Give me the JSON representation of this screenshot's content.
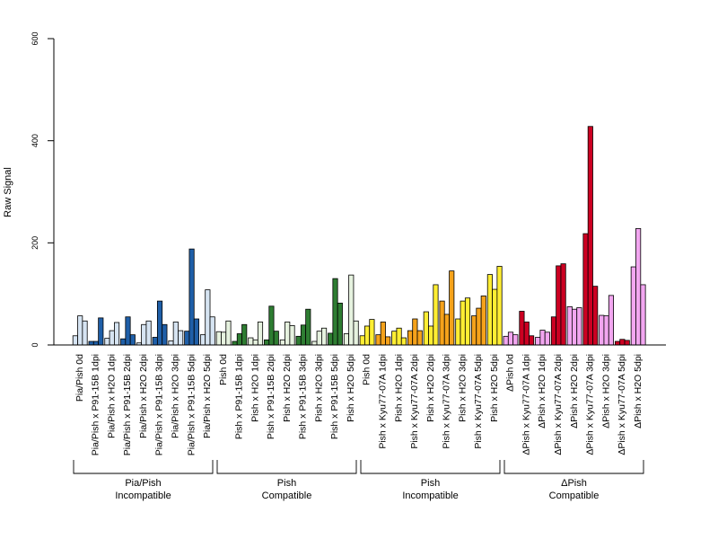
{
  "chart_data": {
    "type": "bar",
    "title": "",
    "xlabel": "",
    "ylabel": "Raw Signal",
    "ylim": [
      0,
      600
    ],
    "yticks": [
      0,
      200,
      400,
      600
    ],
    "grid": false,
    "categories": [
      "Pia/Pish 0d",
      "Pia/Pish x P91-15B 1dpi",
      "Pia/Pish x H2O 1dpi",
      "Pia/Pish x P91-15B 2dpi",
      "Pia/Pish x H2O 2dpi",
      "Pia/Pish x P91-15B 3dpi",
      "Pia/Pish x H2O 3dpi",
      "Pia/Pish x P91-15B 5dpi",
      "Pia/Pish x H2O 5dpi",
      "Pish 0d",
      "Pish x P91-15B 1dpi",
      "Pish x H2O 1dpi",
      "Pish x P91-15B 2dpi",
      "Pish x H2O 2dpi",
      "Pish x P91-15B 3dpi",
      "Pish x H2O 3dpi",
      "Pish x P91-15B 5dpi",
      "Pish x H2O 5dpi",
      "Pish 0d",
      "Pish x Kyu77-07A 1dpi",
      "Pish x H2O 1dpi",
      "Pish x Kyu77-07A 2dpi",
      "Pish x H2O 2dpi",
      "Pish x Kyu77-07A 3dpi",
      "Pish x H2O 3dpi",
      "Pish x Kyu77-07A 5dpi",
      "Pish x H2O 5dpi",
      "ΔPish 0d",
      "ΔPish x Kyu77-07A 1dpi",
      "ΔPish x H2O 1dpi",
      "ΔPish x Kyu77-07A 2dpi",
      "ΔPish x H2O 2dpi",
      "ΔPish x Kyu77-07A 3dpi",
      "ΔPish x H2O 3dpi",
      "ΔPish x Kyu77-07A 5dpi",
      "ΔPish x H2O 5dpi"
    ],
    "values": [
      [
        18,
        57,
        47
      ],
      [
        7,
        7,
        53
      ],
      [
        13,
        28,
        44
      ],
      [
        12,
        55,
        20
      ],
      [
        4,
        40,
        47
      ],
      [
        15,
        86,
        40
      ],
      [
        8,
        45,
        28
      ],
      [
        27,
        188,
        51
      ],
      [
        20,
        108,
        55
      ],
      [
        26,
        25,
        47
      ],
      [
        7,
        22,
        40
      ],
      [
        14,
        10,
        45
      ],
      [
        10,
        76,
        27
      ],
      [
        10,
        45,
        38
      ],
      [
        17,
        39,
        70
      ],
      [
        7,
        27,
        33
      ],
      [
        23,
        130,
        82
      ],
      [
        22,
        137,
        47
      ],
      [
        18,
        37,
        50
      ],
      [
        20,
        45,
        16
      ],
      [
        27,
        33,
        14
      ],
      [
        28,
        51,
        28
      ],
      [
        65,
        37,
        118
      ],
      [
        86,
        60,
        145
      ],
      [
        51,
        86,
        92
      ],
      [
        57,
        72,
        96
      ],
      [
        138,
        109,
        154
      ],
      [
        17,
        25,
        20
      ],
      [
        66,
        45,
        18
      ],
      [
        15,
        29,
        25
      ],
      [
        55,
        155,
        159
      ],
      [
        75,
        70,
        73
      ],
      [
        218,
        428,
        115
      ],
      [
        58,
        57,
        97
      ],
      [
        7,
        11,
        9
      ],
      [
        153,
        228,
        118
      ]
    ],
    "groups": [
      {
        "label_line1": "Pia/Pish",
        "label_line2": "Incompatible"
      },
      {
        "label_line1": "Pish",
        "label_line2": "Compatible"
      },
      {
        "label_line1": "Pish",
        "label_line2": "Incompatible"
      },
      {
        "label_line1": "ΔPish",
        "label_line2": "Compatible"
      }
    ],
    "colors": {
      "blue_dark": "#1f5fa8",
      "blue_light": "#d6e4f2",
      "green_dark": "#2e7d32",
      "green_light": "#e6f2df",
      "yellow": "#ffee33",
      "orange": "#f5a21b",
      "red": "#cc0022",
      "pink": "#f2a6f0"
    }
  }
}
